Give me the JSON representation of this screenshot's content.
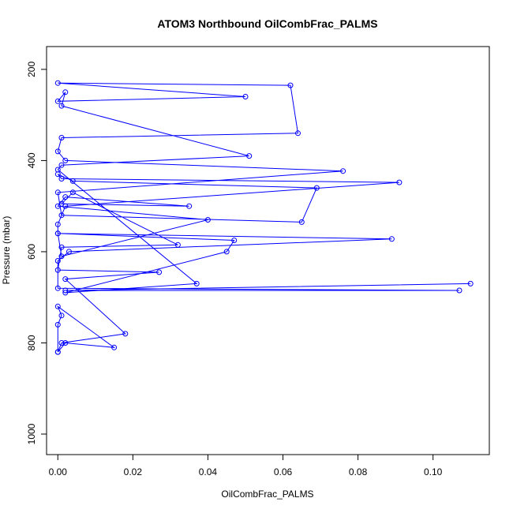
{
  "chart_data": {
    "type": "line",
    "title": "ATOM3 Northbound OilCombFrac_PALMS",
    "xlabel": "OilCombFrac_PALMS",
    "ylabel": "Pressure (mbar)",
    "xlim": [
      -0.003,
      0.115
    ],
    "ylim": [
      1045,
      150
    ],
    "y_reversed": true,
    "x_ticks": [
      0.0,
      0.02,
      0.04,
      0.06,
      0.08,
      0.1
    ],
    "x_tick_labels": [
      "0.00",
      "0.02",
      "0.04",
      "0.06",
      "0.08",
      "0.10"
    ],
    "y_ticks": [
      200,
      400,
      600,
      800,
      1000
    ],
    "y_tick_labels": [
      "200",
      "400",
      "600",
      "800",
      "1000"
    ],
    "grid": false,
    "legend": "none",
    "marker": "open-circle",
    "series": [
      {
        "x": [
          0.11,
          0.002,
          0.107,
          0.0,
          0.0,
          0.003,
          0.089,
          0.0,
          0.0,
          0.002,
          0.091,
          0.001,
          0.0,
          0.004,
          0.069,
          0.065,
          0.001,
          0.0,
          0.076,
          0.002,
          0.0,
          0.001,
          0.064,
          0.062,
          0.0,
          0.05,
          0.0,
          0.002,
          0.001,
          0.051,
          0.001,
          0.0,
          0.037,
          0.002,
          0.045,
          0.047,
          0.0,
          0.001,
          0.04,
          0.0,
          0.002,
          0.035,
          0.001,
          0.004,
          0.032,
          0.001,
          0.0,
          0.027,
          0.002,
          0.018,
          0.001,
          0.0,
          0.0,
          0.001,
          0.0,
          0.015,
          0.002,
          0.0
        ],
        "y": [
          670,
          685,
          685,
          680,
          620,
          600,
          572,
          560,
          540,
          500,
          448,
          440,
          430,
          445,
          460,
          535,
          520,
          470,
          423,
          400,
          380,
          350,
          340,
          235,
          230,
          260,
          270,
          250,
          280,
          390,
          410,
          420,
          670,
          690,
          600,
          575,
          560,
          610,
          530,
          500,
          480,
          500,
          495,
          470,
          585,
          590,
          640,
          645,
          660,
          780,
          800,
          820,
          760,
          740,
          720,
          810,
          800,
          820
        ]
      }
    ]
  }
}
